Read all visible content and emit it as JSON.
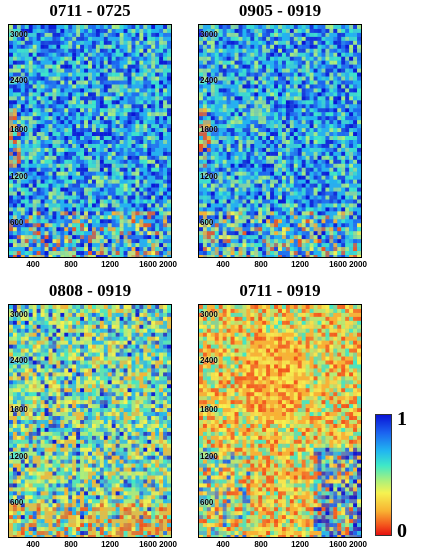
{
  "panels": [
    {
      "title": "0711 - 0725",
      "palette": "blue"
    },
    {
      "title": "0905 - 0919",
      "palette": "blue"
    },
    {
      "title": "0808 - 0919",
      "palette": "mixed"
    },
    {
      "title": "0711 - 0919",
      "palette": "warm"
    }
  ],
  "y_ticks": [
    "3000",
    "2400",
    "1800",
    "1200",
    "600"
  ],
  "x_ticks": [
    "400",
    "800",
    "1200",
    "1600",
    "2000"
  ],
  "colorbar": {
    "max_label": "1",
    "min_label": "0",
    "colors": [
      "#0a14d6",
      "#1b64f0",
      "#21b6f0",
      "#3ee8c8",
      "#aef07a",
      "#f6f250",
      "#f8b232",
      "#f3531c",
      "#e61010"
    ]
  }
}
